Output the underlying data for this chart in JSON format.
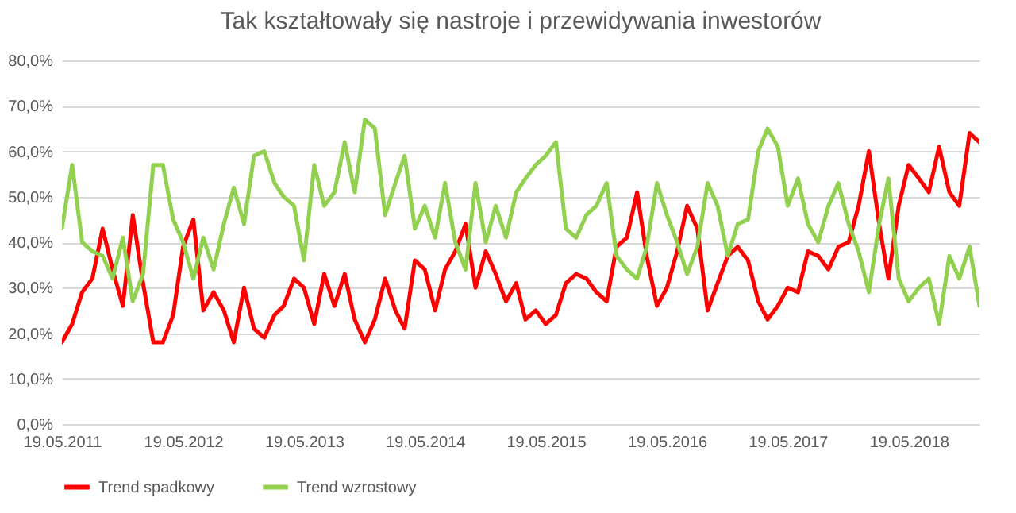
{
  "chart_data": {
    "type": "line",
    "title": "Tak kształtowały się nastroje i przewidywania inwestorów",
    "x": [
      "2011-05-19",
      "2011-06-19",
      "2011-07-19",
      "2011-08-19",
      "2011-09-19",
      "2011-10-19",
      "2011-11-19",
      "2011-12-19",
      "2012-01-19",
      "2012-02-19",
      "2012-03-19",
      "2012-04-19",
      "2012-05-19",
      "2012-06-19",
      "2012-07-19",
      "2012-08-19",
      "2012-09-19",
      "2012-10-19",
      "2012-11-19",
      "2012-12-19",
      "2013-01-19",
      "2013-02-19",
      "2013-03-19",
      "2013-04-19",
      "2013-05-19",
      "2013-06-19",
      "2013-07-19",
      "2013-08-19",
      "2013-09-19",
      "2013-10-19",
      "2013-11-19",
      "2013-12-19",
      "2014-01-19",
      "2014-02-19",
      "2014-03-19",
      "2014-04-19",
      "2014-05-19",
      "2014-06-19",
      "2014-07-19",
      "2014-08-19",
      "2014-09-19",
      "2014-10-19",
      "2014-11-19",
      "2014-12-19",
      "2015-01-19",
      "2015-02-19",
      "2015-03-19",
      "2015-04-19",
      "2015-05-19",
      "2015-06-19",
      "2015-07-19",
      "2015-08-19",
      "2015-09-19",
      "2015-10-19",
      "2015-11-19",
      "2015-12-19",
      "2016-01-19",
      "2016-02-19",
      "2016-03-19",
      "2016-04-19",
      "2016-05-19",
      "2016-06-19",
      "2016-07-19",
      "2016-08-19",
      "2016-09-19",
      "2016-10-19",
      "2016-11-19",
      "2016-12-19",
      "2017-01-19",
      "2017-02-19",
      "2017-03-19",
      "2017-04-19",
      "2017-05-19",
      "2017-06-19",
      "2017-07-19",
      "2017-08-19",
      "2017-09-19",
      "2017-10-19",
      "2017-11-19",
      "2017-12-19",
      "2018-01-19",
      "2018-02-19",
      "2018-03-19",
      "2018-04-19",
      "2018-05-19",
      "2018-06-19",
      "2018-07-19",
      "2018-08-19",
      "2018-09-19",
      "2018-10-19",
      "2018-11-19",
      "2018-12-19"
    ],
    "series": [
      {
        "name": "Trend spadkowy",
        "color": "#ff0000",
        "values": [
          18,
          22,
          29,
          32,
          43,
          34,
          26,
          46,
          31,
          18,
          18,
          24,
          39,
          45,
          25,
          29,
          25,
          18,
          30,
          21,
          19,
          24,
          26,
          32,
          30,
          22,
          33,
          26,
          33,
          23,
          18,
          23,
          32,
          25,
          21,
          36,
          34,
          25,
          34,
          38,
          44,
          30,
          38,
          33,
          27,
          31,
          23,
          25,
          22,
          24,
          31,
          33,
          32,
          29,
          27,
          39,
          41,
          51,
          37,
          26,
          30,
          38,
          48,
          43,
          25,
          31,
          37,
          39,
          36,
          27,
          23,
          26,
          30,
          29,
          38,
          37,
          34,
          39,
          40,
          48,
          60,
          44,
          32,
          48,
          57,
          54,
          51,
          61,
          51,
          48,
          64,
          62
        ]
      },
      {
        "name": "Trend wzrostowy",
        "color": "#92d050",
        "values": [
          43,
          57,
          40,
          38,
          37,
          32,
          41,
          27,
          33,
          57,
          57,
          45,
          40,
          32,
          41,
          34,
          44,
          52,
          44,
          59,
          60,
          53,
          50,
          48,
          36,
          57,
          48,
          51,
          62,
          51,
          67,
          65,
          46,
          53,
          59,
          43,
          48,
          41,
          53,
          40,
          34,
          53,
          40,
          48,
          41,
          51,
          54,
          57,
          59,
          62,
          43,
          41,
          46,
          48,
          53,
          37,
          34,
          32,
          39,
          53,
          46,
          40,
          33,
          39,
          53,
          48,
          37,
          44,
          45,
          60,
          65,
          61,
          48,
          54,
          44,
          40,
          48,
          53,
          44,
          38,
          29,
          44,
          54,
          32,
          27,
          30,
          32,
          22,
          37,
          32,
          39,
          26
        ]
      }
    ],
    "xlim": [
      "2011-05-19",
      "2018-12-19"
    ],
    "xticks": [
      {
        "value": "2011-05-19",
        "label": "19.05.2011"
      },
      {
        "value": "2012-05-19",
        "label": "19.05.2012"
      },
      {
        "value": "2013-05-19",
        "label": "19.05.2013"
      },
      {
        "value": "2014-05-19",
        "label": "19.05.2014"
      },
      {
        "value": "2015-05-19",
        "label": "19.05.2015"
      },
      {
        "value": "2016-05-19",
        "label": "19.05.2016"
      },
      {
        "value": "2017-05-19",
        "label": "19.05.2017"
      },
      {
        "value": "2018-05-19",
        "label": "19.05.2018"
      }
    ],
    "ylim": [
      0,
      80
    ],
    "yticks": [
      {
        "value": 0,
        "label": "0,0%"
      },
      {
        "value": 10,
        "label": "10,0%"
      },
      {
        "value": 20,
        "label": "20,0%"
      },
      {
        "value": 30,
        "label": "30,0%"
      },
      {
        "value": 40,
        "label": "40,0%"
      },
      {
        "value": 50,
        "label": "50,0%"
      },
      {
        "value": 60,
        "label": "60,0%"
      },
      {
        "value": 70,
        "label": "70,0%"
      },
      {
        "value": 80,
        "label": "80,0%"
      }
    ],
    "grid": "y",
    "legend": "bottom",
    "marker": "none",
    "line_style": "solid"
  }
}
